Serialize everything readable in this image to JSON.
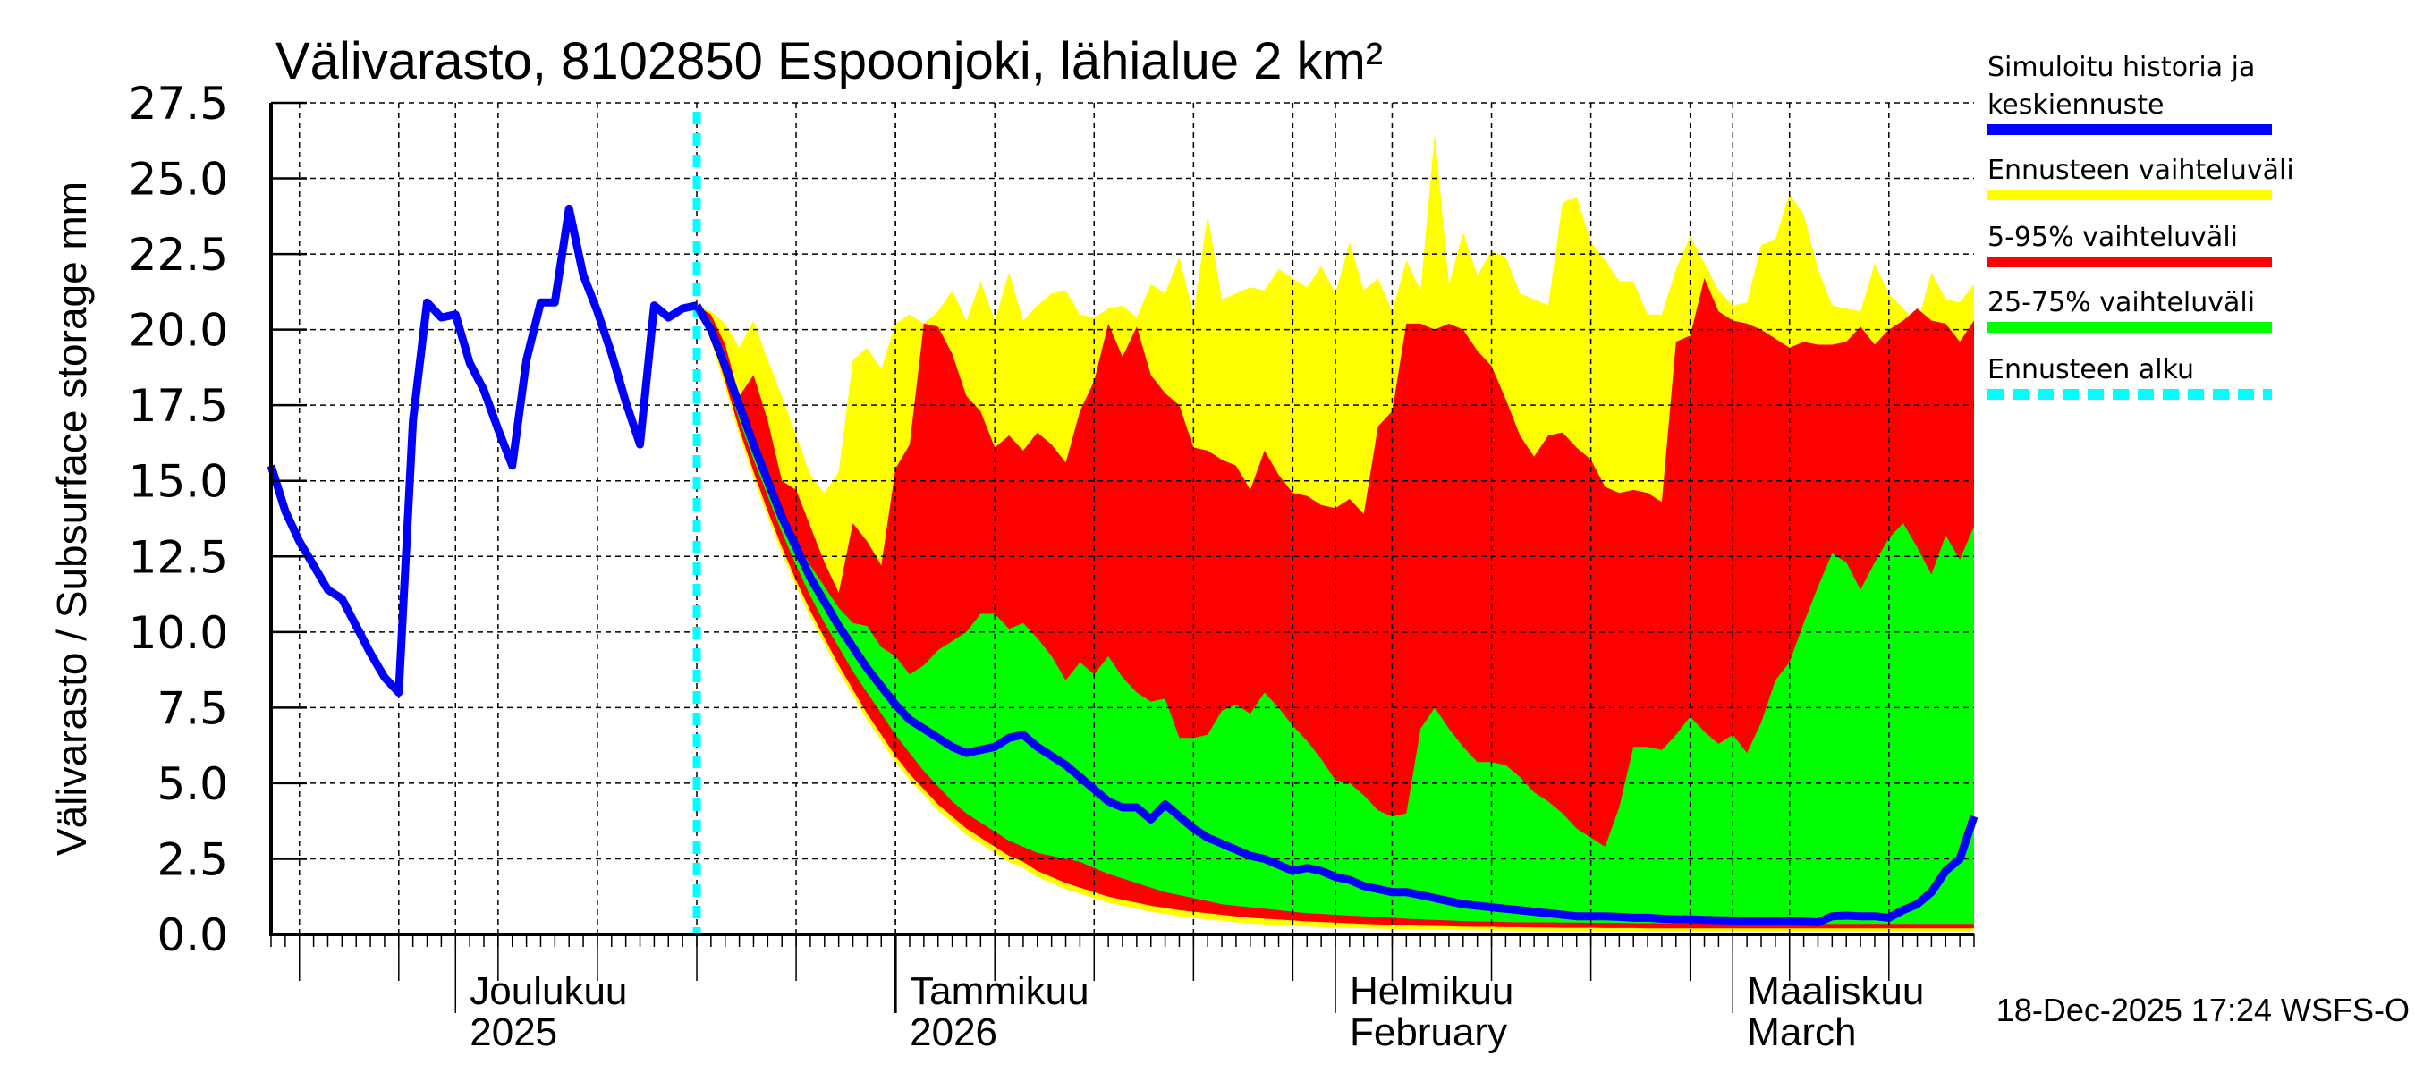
{
  "chart_data": {
    "type": "area",
    "title": "Välivarasto, 8102850 Espoonjoki, lähialue 2 km²",
    "ylabel": "Välivarasto / Subsurface storage  mm",
    "xlabel": "",
    "ylim": [
      0,
      27.5
    ],
    "yticks": [
      0.0,
      2.5,
      5.0,
      7.5,
      10.0,
      12.5,
      15.0,
      17.5,
      20.0,
      22.5,
      25.0,
      27.5
    ],
    "ytick_labels": [
      "0.0",
      "2.5",
      "5.0",
      "7.5",
      "10.0",
      "12.5",
      "15.0",
      "17.5",
      "20.0",
      "22.5",
      "25.0",
      "27.5"
    ],
    "x_start_date": "2025-11-18",
    "x_end_date": "2026-03-18",
    "x_range_days": [
      0,
      120
    ],
    "grid": true,
    "month_ticks": [
      {
        "day": 13,
        "line1": "Joulukuu",
        "line2": "2025"
      },
      {
        "day": 44,
        "line1": "Tammikuu",
        "line2": "2026"
      },
      {
        "day": 75,
        "line1": "Helmikuu",
        "line2": "February"
      },
      {
        "day": 103,
        "line1": "Maaliskuu",
        "line2": "March"
      }
    ],
    "forecast_start_day": 30,
    "forecast_start_date": "2025-12-18",
    "history": {
      "name": "Simuloitu historia ja keskiennuste",
      "start_day": 0,
      "values": [
        15.5,
        14.0,
        13.0,
        12.2,
        11.4,
        11.1,
        10.2,
        9.3,
        8.5,
        8.0,
        17.0,
        20.9,
        20.4,
        20.5,
        18.9,
        18.0,
        16.7,
        15.5,
        19.0,
        20.9,
        20.9,
        24.0,
        21.8,
        20.6,
        19.2,
        17.6,
        16.2,
        20.8,
        20.4,
        20.7,
        20.8
      ]
    },
    "forecast": {
      "start_day": 30,
      "median": [
        20.8,
        20.0,
        18.8,
        17.5,
        16.2,
        15.0,
        13.8,
        12.8,
        11.8,
        11.0,
        10.2,
        9.5,
        8.8,
        8.2,
        7.6,
        7.1,
        6.8,
        6.5,
        6.2,
        6.0,
        6.1,
        6.2,
        6.5,
        6.6,
        6.2,
        5.9,
        5.6,
        5.2,
        4.8,
        4.4,
        4.2,
        4.2,
        3.8,
        4.3,
        3.9,
        3.5,
        3.2,
        3.0,
        2.8,
        2.6,
        2.5,
        2.3,
        2.1,
        2.2,
        2.1,
        1.9,
        1.8,
        1.6,
        1.5,
        1.4,
        1.4,
        1.3,
        1.2,
        1.1,
        1.0,
        0.95,
        0.9,
        0.85,
        0.8,
        0.75,
        0.7,
        0.65,
        0.6,
        0.6,
        0.6,
        0.58,
        0.55,
        0.55,
        0.52,
        0.5,
        0.5,
        0.48,
        0.47,
        0.46,
        0.45,
        0.45,
        0.44,
        0.43,
        0.42,
        0.4,
        0.6,
        0.62,
        0.6,
        0.6,
        0.55,
        0.8,
        1.0,
        1.4,
        2.1,
        2.5,
        3.9
      ],
      "range_max": [
        20.8,
        20.6,
        20.2,
        19.4,
        20.3,
        19.0,
        17.8,
        16.5,
        15.2,
        14.6,
        15.3,
        19.0,
        19.4,
        18.7,
        20.2,
        20.5,
        20.2,
        20.6,
        21.3,
        20.3,
        21.6,
        20.3,
        21.9,
        20.3,
        20.8,
        21.2,
        21.3,
        20.5,
        20.4,
        20.7,
        20.8,
        20.4,
        21.5,
        21.2,
        22.4,
        20.5,
        23.8,
        21.0,
        21.2,
        21.4,
        21.3,
        22.0,
        21.7,
        21.4,
        22.1,
        21.2,
        22.9,
        21.3,
        21.7,
        20.6,
        22.3,
        21.3,
        26.5,
        21.5,
        23.2,
        21.8,
        22.6,
        22.4,
        21.2,
        21.0,
        20.8,
        24.2,
        24.4,
        22.9,
        22.3,
        21.6,
        21.6,
        20.5,
        20.5,
        22.0,
        23.1,
        22.2,
        21.3,
        20.8,
        20.9,
        22.8,
        23.0,
        24.5,
        23.8,
        22.0,
        20.8,
        20.7,
        20.6,
        22.2,
        21.2,
        20.7,
        20.2,
        21.9,
        21.0,
        20.9,
        21.5
      ],
      "p95": [
        20.8,
        20.5,
        19.5,
        17.8,
        18.5,
        17.0,
        15.0,
        14.7,
        13.5,
        12.3,
        11.3,
        13.6,
        13.0,
        12.2,
        15.4,
        16.2,
        20.2,
        20.1,
        19.2,
        17.8,
        17.3,
        16.1,
        16.5,
        16.0,
        16.6,
        16.2,
        15.6,
        17.3,
        18.3,
        20.2,
        19.1,
        20.1,
        18.5,
        17.9,
        17.5,
        16.1,
        16.0,
        15.7,
        15.5,
        14.7,
        16.0,
        15.2,
        14.6,
        14.5,
        14.2,
        14.1,
        14.4,
        13.9,
        16.8,
        17.3,
        20.2,
        20.2,
        20.0,
        20.2,
        20.0,
        19.3,
        18.8,
        17.7,
        16.5,
        15.8,
        16.5,
        16.6,
        16.1,
        15.7,
        14.8,
        14.6,
        14.7,
        14.6,
        14.3,
        19.6,
        19.8,
        21.7,
        20.6,
        20.3,
        20.2,
        20.0,
        19.7,
        19.4,
        19.6,
        19.5,
        19.5,
        19.6,
        20.1,
        19.5,
        20.0,
        20.3,
        20.7,
        20.3,
        20.2,
        19.6,
        20.3
      ],
      "p75": [
        20.8,
        20.3,
        19.2,
        17.8,
        16.5,
        15.2,
        14.0,
        13.0,
        12.2,
        11.5,
        10.8,
        10.3,
        10.2,
        9.5,
        9.2,
        8.6,
        8.9,
        9.4,
        9.7,
        10.0,
        10.6,
        10.6,
        10.1,
        10.3,
        9.8,
        9.2,
        8.4,
        9.0,
        8.6,
        9.2,
        8.5,
        8.0,
        7.7,
        7.8,
        6.5,
        6.5,
        6.6,
        7.4,
        7.6,
        7.3,
        8.0,
        7.5,
        6.9,
        6.4,
        5.8,
        5.1,
        5.0,
        4.6,
        4.1,
        3.9,
        4.0,
        6.8,
        7.5,
        6.8,
        6.2,
        5.7,
        5.7,
        5.6,
        5.2,
        4.7,
        4.4,
        4.0,
        3.5,
        3.2,
        2.9,
        4.2,
        6.2,
        6.2,
        6.1,
        6.6,
        7.2,
        6.7,
        6.3,
        6.6,
        6.0,
        7.0,
        8.4,
        9.0,
        10.3,
        11.5,
        12.6,
        12.3,
        11.4,
        12.3,
        13.1,
        13.6,
        12.8,
        11.9,
        13.2,
        12.4,
        13.5
      ],
      "p25": [
        20.8,
        19.9,
        18.5,
        17.0,
        15.7,
        14.5,
        13.3,
        12.2,
        11.2,
        10.3,
        9.5,
        8.7,
        8.0,
        7.3,
        6.6,
        6.0,
        5.4,
        4.9,
        4.4,
        4.0,
        3.7,
        3.4,
        3.1,
        2.9,
        2.7,
        2.6,
        2.5,
        2.4,
        2.2,
        2.0,
        1.85,
        1.7,
        1.55,
        1.4,
        1.3,
        1.2,
        1.1,
        1.0,
        0.95,
        0.9,
        0.85,
        0.8,
        0.75,
        0.7,
        0.68,
        0.65,
        0.62,
        0.6,
        0.57,
        0.55,
        0.52,
        0.5,
        0.48,
        0.46,
        0.44,
        0.43,
        0.42,
        0.41,
        0.4,
        0.4,
        0.4,
        0.39,
        0.39,
        0.38,
        0.38,
        0.38,
        0.37,
        0.37,
        0.37,
        0.36,
        0.36,
        0.36,
        0.36,
        0.35,
        0.35,
        0.35,
        0.35,
        0.35,
        0.35,
        0.35,
        0.35,
        0.35,
        0.35,
        0.35,
        0.35,
        0.35,
        0.35,
        0.35,
        0.35,
        0.35,
        0.35
      ],
      "p05": [
        20.8,
        19.8,
        18.3,
        16.7,
        15.3,
        14.0,
        12.8,
        11.7,
        10.7,
        9.8,
        8.9,
        8.1,
        7.3,
        6.6,
        5.9,
        5.3,
        4.8,
        4.3,
        3.9,
        3.5,
        3.2,
        2.9,
        2.6,
        2.4,
        2.1,
        1.9,
        1.7,
        1.55,
        1.4,
        1.25,
        1.15,
        1.05,
        0.95,
        0.88,
        0.8,
        0.75,
        0.7,
        0.65,
        0.6,
        0.55,
        0.52,
        0.49,
        0.46,
        0.43,
        0.41,
        0.39,
        0.37,
        0.35,
        0.33,
        0.32,
        0.3,
        0.29,
        0.28,
        0.27,
        0.26,
        0.25,
        0.25,
        0.24,
        0.24,
        0.23,
        0.23,
        0.22,
        0.22,
        0.22,
        0.21,
        0.21,
        0.21,
        0.2,
        0.2,
        0.2,
        0.2,
        0.2,
        0.2,
        0.2,
        0.2,
        0.2,
        0.2,
        0.2,
        0.2,
        0.2,
        0.2,
        0.2,
        0.2,
        0.2,
        0.2,
        0.2,
        0.2,
        0.2,
        0.2,
        0.2,
        0.2
      ],
      "range_min": [
        20.8,
        19.6,
        18.1,
        16.5,
        15.1,
        13.8,
        12.6,
        11.5,
        10.5,
        9.6,
        8.7,
        7.9,
        7.1,
        6.4,
        5.7,
        5.1,
        4.6,
        4.1,
        3.7,
        3.3,
        3.0,
        2.7,
        2.4,
        2.2,
        1.9,
        1.7,
        1.5,
        1.35,
        1.2,
        1.05,
        0.95,
        0.85,
        0.75,
        0.68,
        0.6,
        0.55,
        0.5,
        0.45,
        0.4,
        0.36,
        0.33,
        0.3,
        0.28,
        0.26,
        0.24,
        0.22,
        0.21,
        0.2,
        0.19,
        0.18,
        0.17,
        0.16,
        0.15,
        0.15,
        0.14,
        0.14,
        0.13,
        0.13,
        0.12,
        0.12,
        0.12,
        0.11,
        0.11,
        0.11,
        0.1,
        0.1,
        0.1,
        0.1,
        0.1,
        0.1,
        0.1,
        0.1,
        0.1,
        0.1,
        0.1,
        0.1,
        0.1,
        0.1,
        0.1,
        0.1,
        0.1,
        0.1,
        0.1,
        0.1,
        0.1,
        0.1,
        0.1,
        0.1,
        0.1,
        0.1,
        0.1
      ]
    },
    "legend": {
      "position": "right",
      "entries": [
        {
          "line1": "Simuloitu historia ja",
          "line2": "keskiennuste",
          "color": "#0000ff",
          "style": "solid"
        },
        {
          "line1": "Ennusteen vaihteluväli",
          "line2": "",
          "color": "#ffff00",
          "style": "solid"
        },
        {
          "line1": "5-95% vaihteluväli",
          "line2": "",
          "color": "#ff0000",
          "style": "solid"
        },
        {
          "line1": "25-75% vaihteluväli",
          "line2": "",
          "color": "#00ff00",
          "style": "solid"
        },
        {
          "line1": "Ennusteen alku",
          "line2": "",
          "color": "#00ffff",
          "style": "dashed"
        }
      ]
    },
    "colors": {
      "median": "#0000ff",
      "range": "#ffff00",
      "p5_95": "#ff0000",
      "p25_75": "#00ff00",
      "forecast_start": "#00ffff"
    },
    "footer": "18-Dec-2025 17:24 WSFS-O"
  }
}
